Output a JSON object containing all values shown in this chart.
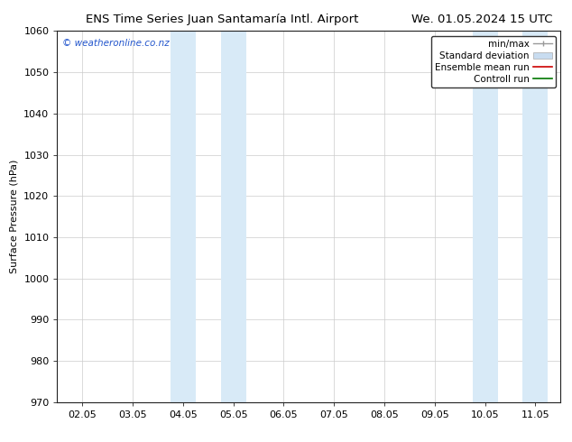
{
  "title_left": "ENS Time Series Juan Santamaría Intl. Airport",
  "title_right": "We. 01.05.2024 15 UTC",
  "ylabel": "Surface Pressure (hPa)",
  "ylim": [
    970,
    1060
  ],
  "yticks": [
    970,
    980,
    990,
    1000,
    1010,
    1020,
    1030,
    1040,
    1050,
    1060
  ],
  "xtick_labels": [
    "02.05",
    "03.05",
    "04.05",
    "05.05",
    "06.05",
    "07.05",
    "08.05",
    "09.05",
    "10.05",
    "11.05"
  ],
  "xtick_positions": [
    0,
    1,
    2,
    3,
    4,
    5,
    6,
    7,
    8,
    9
  ],
  "xlim": [
    -0.5,
    9.5
  ],
  "shaded_regions": [
    {
      "x_start": 1.75,
      "x_end": 2.25,
      "color": "#d8eaf7"
    },
    {
      "x_start": 2.75,
      "x_end": 3.25,
      "color": "#d8eaf7"
    },
    {
      "x_start": 7.75,
      "x_end": 8.25,
      "color": "#d8eaf7"
    },
    {
      "x_start": 8.75,
      "x_end": 9.25,
      "color": "#d8eaf7"
    }
  ],
  "watermark_text": "© weatheronline.co.nz",
  "watermark_color": "#2255cc",
  "background_color": "#ffffff",
  "title_fontsize": 9.5,
  "tick_fontsize": 8,
  "ylabel_fontsize": 8,
  "grid_color": "#cccccc",
  "minmax_color": "#999999",
  "stddev_color": "#c8dcf0",
  "mean_color": "#cc0000",
  "control_color": "#007700",
  "legend_labels": [
    "min/max",
    "Standard deviation",
    "Ensemble mean run",
    "Controll run"
  ],
  "legend_fontsize": 7.5
}
